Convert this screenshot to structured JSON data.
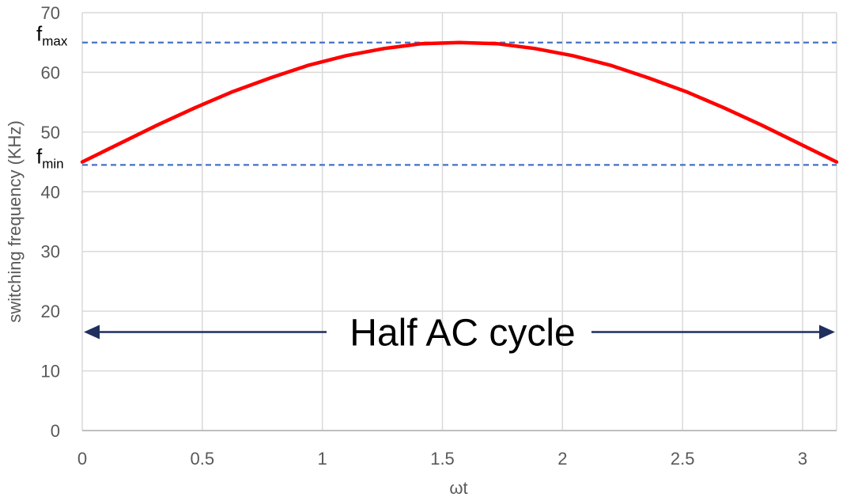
{
  "chart_data": {
    "type": "line",
    "title": "",
    "xlabel": "ωt",
    "ylabel": "switching frequency (KHz)",
    "xlim": [
      0,
      3.1416
    ],
    "ylim": [
      0,
      70
    ],
    "x_ticks": [
      "0",
      "0.5",
      "1",
      "1.5",
      "2",
      "2.5",
      "3"
    ],
    "x_tick_values": [
      0,
      0.5,
      1,
      1.5,
      2,
      2.5,
      3
    ],
    "y_ticks": [
      "0",
      "10",
      "20",
      "30",
      "40",
      "50",
      "60",
      "70"
    ],
    "y_tick_values": [
      0,
      10,
      20,
      30,
      40,
      50,
      60,
      70
    ],
    "grid": true,
    "series": [
      {
        "color": "#ff0000",
        "x": [
          0,
          0.1571,
          0.3142,
          0.4712,
          0.6283,
          0.7854,
          0.9425,
          1.0996,
          1.2566,
          1.4137,
          1.5708,
          1.7279,
          1.885,
          2.042,
          2.1991,
          2.3562,
          2.5133,
          2.6704,
          2.8274,
          2.9845,
          3.1416
        ],
        "y": [
          45,
          48.1,
          51.2,
          54.1,
          56.8,
          59.1,
          61.2,
          62.8,
          64.0,
          64.8,
          65.0,
          64.8,
          64.0,
          62.8,
          61.2,
          59.1,
          56.8,
          54.1,
          51.2,
          48.1,
          45
        ]
      }
    ],
    "reference_lines": [
      {
        "label_main": "f",
        "label_sub": "max",
        "y": 65,
        "color": "#4472c4"
      },
      {
        "label_main": "f",
        "label_sub": "min",
        "y": 44.5,
        "color": "#4472c4"
      }
    ],
    "annotation": {
      "text": "Half AC cycle",
      "y": 16.5,
      "x_start": 0,
      "x_end": 3.1416,
      "color": "#1f2f5e"
    }
  }
}
